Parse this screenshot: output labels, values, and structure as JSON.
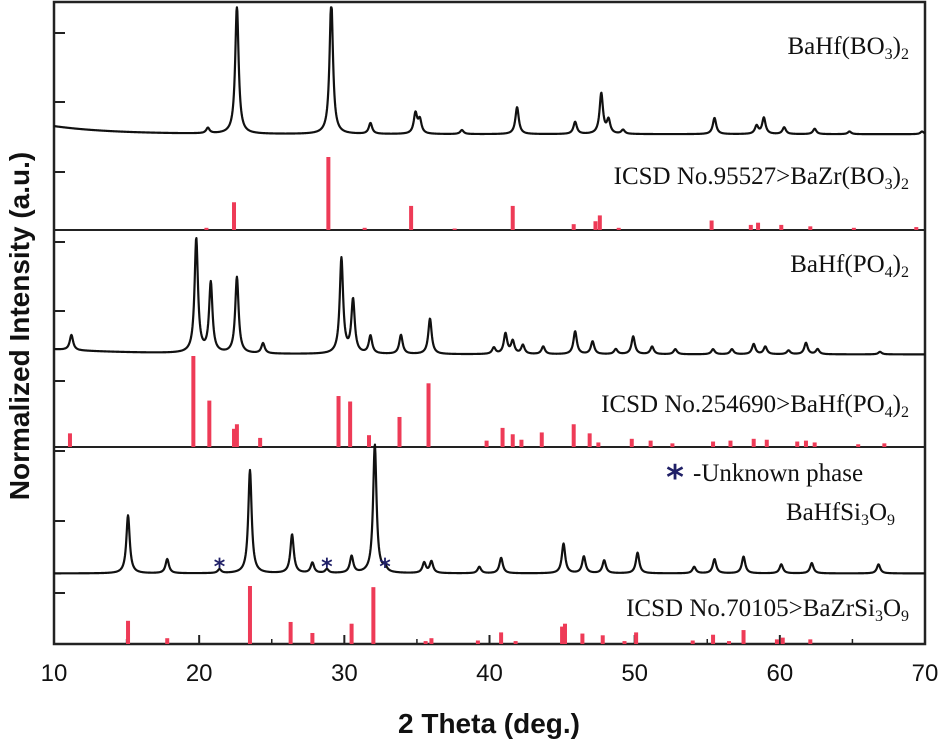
{
  "chart_data": {
    "type": "line",
    "xlabel": "2 Theta (deg.)",
    "ylabel": "Normalized Intensity (a.u.)",
    "xlim": [
      10,
      70
    ],
    "x_ticks": [
      "10",
      "20",
      "30",
      "40",
      "50",
      "60",
      "70"
    ],
    "grid": false,
    "colors": {
      "pattern": "#111111",
      "reference": "#ee3b57",
      "marker": "#1f1f66"
    },
    "panels": [
      {
        "series": {
          "name": "BaHf(BO3)2",
          "baseline": 0.08,
          "peaks": [
            [
              20.6,
              0.04
            ],
            [
              22.6,
              0.95
            ],
            [
              29.1,
              1.0
            ],
            [
              31.8,
              0.08
            ],
            [
              34.9,
              0.15
            ],
            [
              35.2,
              0.1
            ],
            [
              38.1,
              0.03
            ],
            [
              41.9,
              0.2
            ],
            [
              45.9,
              0.09
            ],
            [
              47.7,
              0.3
            ],
            [
              48.2,
              0.1
            ],
            [
              49.2,
              0.03
            ],
            [
              55.5,
              0.12
            ],
            [
              58.4,
              0.06
            ],
            [
              58.9,
              0.12
            ],
            [
              60.3,
              0.05
            ],
            [
              62.4,
              0.04
            ],
            [
              64.8,
              0.02
            ],
            [
              69.8,
              0.02
            ]
          ]
        },
        "reference": {
          "name": "ICSD No.95527>BaZr(BO3)2",
          "sticks": [
            [
              20.5,
              0.03
            ],
            [
              22.4,
              0.38
            ],
            [
              28.9,
              1.0
            ],
            [
              31.4,
              0.03
            ],
            [
              34.6,
              0.33
            ],
            [
              37.6,
              0.02
            ],
            [
              41.6,
              0.33
            ],
            [
              45.8,
              0.08
            ],
            [
              47.3,
              0.12
            ],
            [
              47.6,
              0.2
            ],
            [
              48.9,
              0.03
            ],
            [
              55.3,
              0.13
            ],
            [
              58.0,
              0.07
            ],
            [
              58.5,
              0.1
            ],
            [
              60.1,
              0.07
            ],
            [
              62.1,
              0.05
            ],
            [
              65.1,
              0.03
            ],
            [
              69.4,
              0.04
            ]
          ]
        }
      },
      {
        "series": {
          "name": "BaHf(PO4)2",
          "baseline": 0.06,
          "peaks": [
            [
              11.2,
              0.12
            ],
            [
              19.8,
              0.9
            ],
            [
              20.8,
              0.55
            ],
            [
              22.6,
              0.6
            ],
            [
              24.4,
              0.08
            ],
            [
              29.8,
              0.75
            ],
            [
              30.6,
              0.42
            ],
            [
              31.8,
              0.14
            ],
            [
              33.9,
              0.15
            ],
            [
              35.9,
              0.28
            ],
            [
              40.3,
              0.05
            ],
            [
              41.1,
              0.16
            ],
            [
              41.6,
              0.1
            ],
            [
              42.3,
              0.07
            ],
            [
              43.7,
              0.06
            ],
            [
              45.9,
              0.18
            ],
            [
              47.1,
              0.1
            ],
            [
              48.7,
              0.04
            ],
            [
              49.9,
              0.14
            ],
            [
              51.2,
              0.06
            ],
            [
              52.8,
              0.04
            ],
            [
              55.4,
              0.04
            ],
            [
              56.7,
              0.04
            ],
            [
              58.2,
              0.08
            ],
            [
              59.0,
              0.06
            ],
            [
              60.6,
              0.03
            ],
            [
              61.8,
              0.09
            ],
            [
              62.6,
              0.04
            ],
            [
              66.9,
              0.02
            ]
          ]
        },
        "reference": {
          "name": "ICSD No.254690>BaHf(PO4)2",
          "sticks": [
            [
              11.1,
              0.15
            ],
            [
              19.6,
              1.0
            ],
            [
              20.7,
              0.51
            ],
            [
              22.4,
              0.2
            ],
            [
              22.6,
              0.25
            ],
            [
              24.2,
              0.1
            ],
            [
              29.6,
              0.56
            ],
            [
              30.4,
              0.5
            ],
            [
              31.7,
              0.13
            ],
            [
              33.8,
              0.33
            ],
            [
              35.8,
              0.7
            ],
            [
              39.8,
              0.07
            ],
            [
              40.9,
              0.21
            ],
            [
              41.6,
              0.14
            ],
            [
              42.2,
              0.08
            ],
            [
              43.6,
              0.16
            ],
            [
              45.8,
              0.25
            ],
            [
              46.9,
              0.15
            ],
            [
              47.5,
              0.05
            ],
            [
              49.8,
              0.09
            ],
            [
              51.1,
              0.07
            ],
            [
              52.6,
              0.04
            ],
            [
              55.4,
              0.06
            ],
            [
              56.6,
              0.07
            ],
            [
              58.2,
              0.09
            ],
            [
              59.1,
              0.08
            ],
            [
              61.2,
              0.06
            ],
            [
              61.8,
              0.07
            ],
            [
              62.4,
              0.05
            ],
            [
              65.4,
              0.03
            ],
            [
              67.2,
              0.04
            ]
          ]
        }
      },
      {
        "series": {
          "name": "BaHfSi3O9",
          "baseline": 0.02,
          "peaks": [
            [
              15.1,
              0.45
            ],
            [
              17.8,
              0.11
            ],
            [
              21.4,
              0.03
            ],
            [
              23.5,
              0.8
            ],
            [
              26.4,
              0.3
            ],
            [
              27.8,
              0.08
            ],
            [
              28.8,
              0.03
            ],
            [
              30.5,
              0.13
            ],
            [
              32.1,
              1.0
            ],
            [
              32.8,
              0.04
            ],
            [
              35.5,
              0.08
            ],
            [
              36.0,
              0.09
            ],
            [
              39.3,
              0.05
            ],
            [
              40.8,
              0.12
            ],
            [
              45.1,
              0.23
            ],
            [
              46.5,
              0.13
            ],
            [
              47.9,
              0.1
            ],
            [
              50.2,
              0.16
            ],
            [
              54.1,
              0.05
            ],
            [
              55.5,
              0.11
            ],
            [
              57.5,
              0.13
            ],
            [
              60.1,
              0.07
            ],
            [
              62.2,
              0.08
            ],
            [
              66.8,
              0.07
            ]
          ]
        },
        "reference": {
          "name": "ICSD No.70105>BaZrSi3O9",
          "sticks": [
            [
              15.1,
              0.4
            ],
            [
              17.8,
              0.1
            ],
            [
              23.5,
              1.0
            ],
            [
              26.3,
              0.38
            ],
            [
              27.8,
              0.19
            ],
            [
              30.5,
              0.35
            ],
            [
              32.0,
              0.98
            ],
            [
              35.6,
              0.05
            ],
            [
              36.0,
              0.1
            ],
            [
              39.2,
              0.06
            ],
            [
              40.8,
              0.2
            ],
            [
              41.8,
              0.05
            ],
            [
              45.0,
              0.3
            ],
            [
              45.2,
              0.35
            ],
            [
              46.4,
              0.18
            ],
            [
              47.8,
              0.15
            ],
            [
              49.3,
              0.05
            ],
            [
              50.1,
              0.2
            ],
            [
              54.0,
              0.06
            ],
            [
              55.4,
              0.16
            ],
            [
              56.5,
              0.05
            ],
            [
              57.5,
              0.24
            ],
            [
              59.8,
              0.08
            ],
            [
              60.2,
              0.11
            ],
            [
              62.1,
              0.08
            ]
          ]
        }
      }
    ],
    "unknown_phase": {
      "legend": "-Unknown phase",
      "marker_symbol": "*",
      "positions": [
        21.4,
        28.8,
        32.8
      ]
    },
    "labels": {
      "p0_series": {
        "base": "BaHf(BO",
        "sub1": "3",
        "mid": ")",
        "sub2": "2"
      },
      "p0_ref": {
        "base": "ICSD No.95527>BaZr(BO",
        "sub1": "3",
        "mid": ")",
        "sub2": "2"
      },
      "p1_series": {
        "base": "BaHf(PO",
        "sub1": "4",
        "mid": ")",
        "sub2": "2"
      },
      "p1_ref": {
        "base": "ICSD No.254690>BaHf(PO",
        "sub1": "4",
        "mid": ")",
        "sub2": "2"
      },
      "p2_series": {
        "base": "BaHfSi",
        "sub1": "3",
        "mid": "O",
        "sub2": "9"
      },
      "p2_ref": {
        "base": "ICSD No.70105>BaZrSi",
        "sub1": "3",
        "mid": "O",
        "sub2": "9"
      }
    }
  }
}
